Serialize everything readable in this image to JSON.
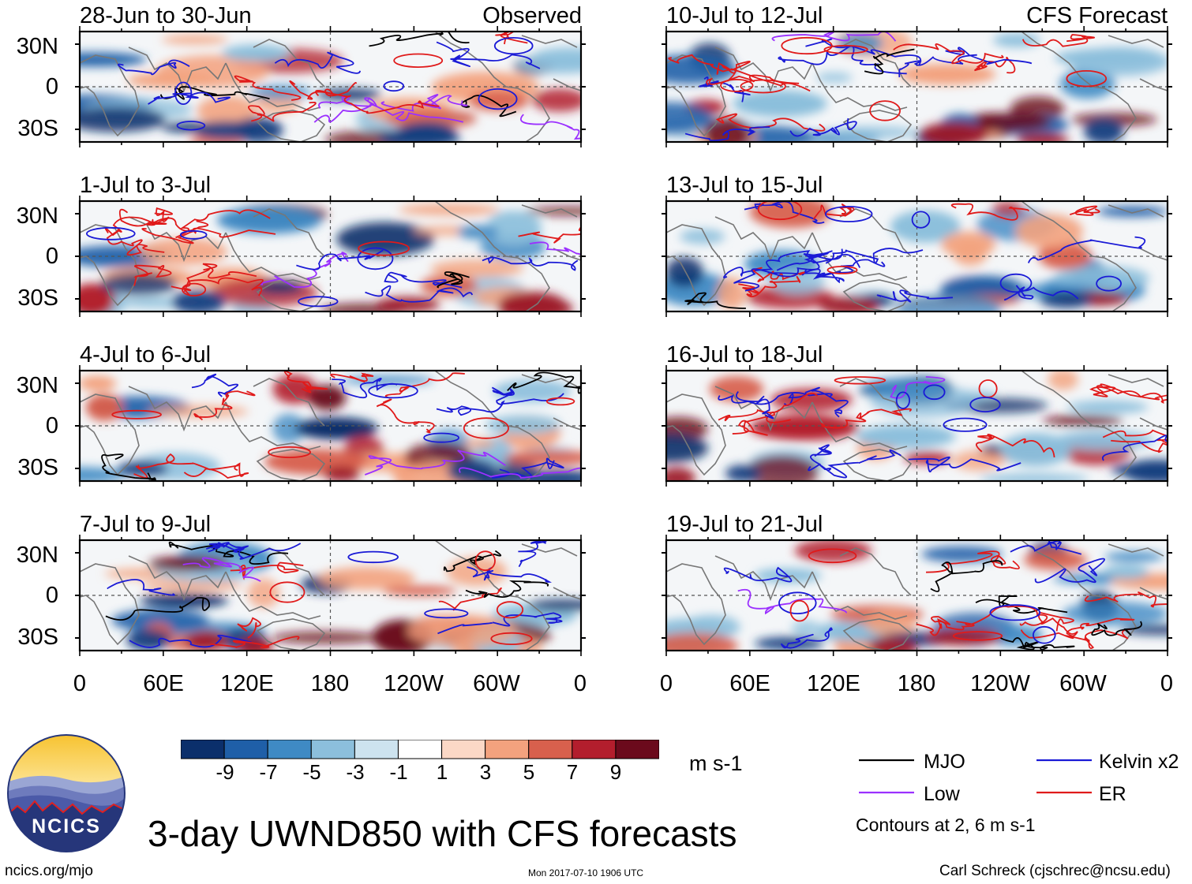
{
  "header": {
    "observed_label": "Observed",
    "forecast_label": "CFS Forecast"
  },
  "panels_left": [
    {
      "title": "28-Jun to 30-Jun"
    },
    {
      "title": "1-Jul to 3-Jul"
    },
    {
      "title": "4-Jul to 6-Jul"
    },
    {
      "title": "7-Jul to 9-Jul"
    }
  ],
  "panels_right": [
    {
      "title": "10-Jul to 12-Jul"
    },
    {
      "title": "13-Jul to 15-Jul"
    },
    {
      "title": "16-Jul to 18-Jul"
    },
    {
      "title": "19-Jul to 21-Jul"
    }
  ],
  "axes": {
    "lat_labels": [
      "30N",
      "0",
      "30S"
    ],
    "lon_labels": [
      "0",
      "60E",
      "120E",
      "180",
      "120W",
      "60W",
      "0"
    ]
  },
  "colorbar": {
    "labels": [
      "-9",
      "-7",
      "-5",
      "-3",
      "-1",
      "1",
      "3",
      "5",
      "7",
      "9"
    ],
    "colors": [
      "#0b2f6b",
      "#1f5fa8",
      "#3f8ac4",
      "#8cbfdc",
      "#cde3ef",
      "#ffffff",
      "#fbd8c6",
      "#f3a27e",
      "#d8604d",
      "#b31e2d",
      "#6b0a1c"
    ],
    "units": "m s-1"
  },
  "legend": {
    "items": [
      {
        "label": "MJO",
        "color": "#000000"
      },
      {
        "label": "Kelvin x2",
        "color": "#1a1ad6"
      },
      {
        "label": "Low",
        "color": "#9b30ff"
      },
      {
        "label": "ER",
        "color": "#e01a1a"
      }
    ],
    "contour_note": "Contours at 2, 6 m s-1"
  },
  "title": "3-day UWND850 with CFS forecasts",
  "logo": {
    "text": "NCICS"
  },
  "footer": {
    "url": "ncics.org/mjo",
    "timestamp": "Mon 2017-07-10 1906 UTC",
    "author": "Carl Schreck (cjschrec@ncsu.edu)"
  }
}
